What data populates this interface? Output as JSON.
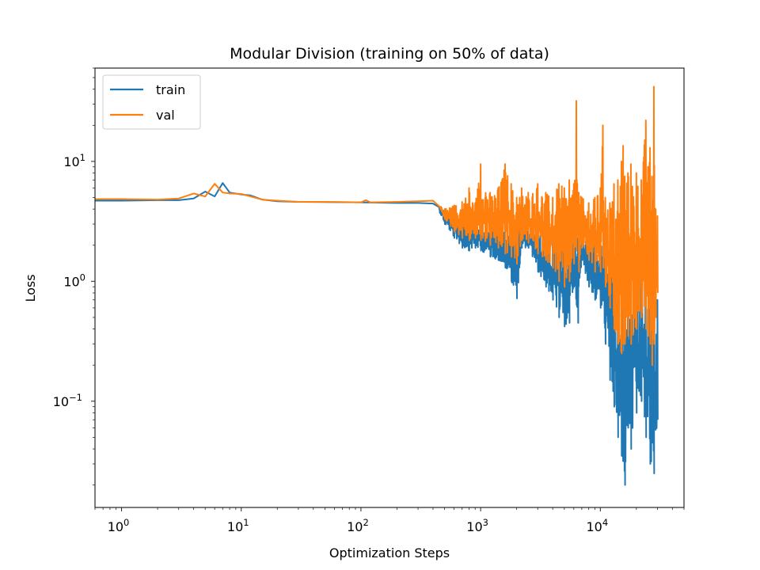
{
  "chart_data": {
    "type": "line",
    "title": "Modular Division (training on 50% of data)",
    "xlabel": "Optimization Steps",
    "ylabel": "Loss",
    "xscale": "log",
    "yscale": "log",
    "xlim": [
      0.6,
      50000
    ],
    "ylim": [
      0.013,
      60
    ],
    "grid": false,
    "legend": {
      "position": "top-left",
      "entries": [
        "train",
        "val"
      ]
    },
    "x_ticks": [
      {
        "value": 1,
        "base": "10",
        "exp": "0"
      },
      {
        "value": 10,
        "base": "10",
        "exp": "1"
      },
      {
        "value": 100,
        "base": "10",
        "exp": "2"
      },
      {
        "value": 1000,
        "base": "10",
        "exp": "3"
      },
      {
        "value": 10000,
        "base": "10",
        "exp": "4"
      }
    ],
    "y_ticks": [
      {
        "value": 0.1,
        "base": "10",
        "exp": "−1"
      },
      {
        "value": 1,
        "base": "10",
        "exp": "0"
      },
      {
        "value": 10,
        "base": "10",
        "exp": "1"
      }
    ],
    "series": [
      {
        "name": "train",
        "color": "#1f77b4",
        "points": [
          [
            0.6,
            4.7
          ],
          [
            1,
            4.7
          ],
          [
            2,
            4.75
          ],
          [
            3,
            4.75
          ],
          [
            4,
            4.9
          ],
          [
            5,
            5.6
          ],
          [
            6,
            5.1
          ],
          [
            7,
            6.6
          ],
          [
            8,
            5.5
          ],
          [
            10,
            5.3
          ],
          [
            12,
            5.2
          ],
          [
            15,
            4.8
          ],
          [
            20,
            4.65
          ],
          [
            30,
            4.6
          ],
          [
            50,
            4.58
          ],
          [
            100,
            4.55
          ],
          [
            200,
            4.5
          ],
          [
            300,
            4.5
          ],
          [
            400,
            4.45
          ]
        ],
        "noisy_envelope": [
          [
            450,
            3.8,
            4.3
          ],
          [
            500,
            3.0,
            3.9
          ],
          [
            600,
            2.3,
            3.5
          ],
          [
            700,
            1.9,
            3.3
          ],
          [
            800,
            1.8,
            3.6
          ],
          [
            900,
            1.9,
            3.2
          ],
          [
            1000,
            1.8,
            3.1
          ],
          [
            1200,
            1.6,
            2.9
          ],
          [
            1400,
            1.5,
            3.0
          ],
          [
            1600,
            1.3,
            2.8
          ],
          [
            1800,
            1.0,
            2.7
          ],
          [
            2000,
            0.72,
            2.5
          ],
          [
            2200,
            1.9,
            3.0
          ],
          [
            2500,
            1.9,
            2.8
          ],
          [
            3000,
            1.2,
            2.6
          ],
          [
            3500,
            0.9,
            2.4
          ],
          [
            4000,
            0.7,
            2.2
          ],
          [
            4500,
            0.5,
            2.3
          ],
          [
            5000,
            0.42,
            2.6
          ],
          [
            5500,
            0.45,
            2.4
          ],
          [
            6000,
            0.9,
            2.5
          ],
          [
            6500,
            0.45,
            2.3
          ],
          [
            7000,
            1.5,
            2.4
          ],
          [
            8000,
            0.9,
            2.2
          ],
          [
            9000,
            0.7,
            2.0
          ],
          [
            10000,
            0.6,
            2.2
          ],
          [
            11000,
            0.3,
            1.8
          ],
          [
            12000,
            0.15,
            1.4
          ],
          [
            13000,
            0.09,
            1.2
          ],
          [
            14000,
            0.05,
            0.9
          ],
          [
            15000,
            0.035,
            1.0
          ],
          [
            16000,
            0.02,
            0.8
          ],
          [
            17000,
            0.06,
            1.0
          ],
          [
            18000,
            0.04,
            0.9
          ],
          [
            20000,
            0.08,
            1.2
          ],
          [
            22000,
            0.1,
            1.0
          ],
          [
            24000,
            0.05,
            0.8
          ],
          [
            26000,
            0.03,
            0.9
          ],
          [
            28000,
            0.025,
            0.8
          ],
          [
            30000,
            0.07,
            0.7
          ]
        ]
      },
      {
        "name": "val",
        "color": "#ff7f0e",
        "points": [
          [
            0.6,
            4.85
          ],
          [
            1,
            4.85
          ],
          [
            2,
            4.8
          ],
          [
            3,
            4.9
          ],
          [
            4,
            5.4
          ],
          [
            5,
            5.1
          ],
          [
            6,
            6.5
          ],
          [
            7,
            5.5
          ],
          [
            8,
            5.4
          ],
          [
            10,
            5.35
          ],
          [
            12,
            5.1
          ],
          [
            15,
            4.8
          ],
          [
            20,
            4.7
          ],
          [
            30,
            4.6
          ],
          [
            50,
            4.6
          ],
          [
            100,
            4.55
          ],
          [
            110,
            4.75
          ],
          [
            120,
            4.55
          ],
          [
            200,
            4.6
          ],
          [
            300,
            4.65
          ],
          [
            400,
            4.7
          ]
        ],
        "noisy_envelope": [
          [
            450,
            4.0,
            4.5
          ],
          [
            500,
            3.3,
            4.0
          ],
          [
            600,
            2.6,
            4.3
          ],
          [
            700,
            2.3,
            4.6
          ],
          [
            800,
            2.2,
            6.0
          ],
          [
            900,
            2.3,
            4.5
          ],
          [
            1000,
            2.2,
            9.5
          ],
          [
            1200,
            2.0,
            5.5
          ],
          [
            1400,
            1.9,
            6.0
          ],
          [
            1600,
            1.7,
            9.5
          ],
          [
            1800,
            1.6,
            6.5
          ],
          [
            2000,
            1.4,
            5.0
          ],
          [
            2200,
            2.2,
            6.0
          ],
          [
            2500,
            2.1,
            5.5
          ],
          [
            3000,
            1.7,
            6.5
          ],
          [
            3500,
            1.5,
            5.5
          ],
          [
            4000,
            1.3,
            5.0
          ],
          [
            4500,
            1.0,
            6.5
          ],
          [
            5000,
            0.9,
            6.0
          ],
          [
            5500,
            1.0,
            7.0
          ],
          [
            6000,
            1.4,
            6.5
          ],
          [
            6300,
            1.8,
            32.0
          ],
          [
            6600,
            1.2,
            5.5
          ],
          [
            7000,
            1.9,
            5.0
          ],
          [
            8000,
            1.5,
            4.5
          ],
          [
            9000,
            1.2,
            5.0
          ],
          [
            10000,
            1.2,
            6.0
          ],
          [
            10500,
            1.3,
            20.0
          ],
          [
            11000,
            0.9,
            5.0
          ],
          [
            12000,
            0.6,
            4.5
          ],
          [
            13000,
            0.4,
            6.5
          ],
          [
            14000,
            0.3,
            7.0
          ],
          [
            15000,
            0.25,
            10.0
          ],
          [
            15500,
            0.3,
            13.5
          ],
          [
            16000,
            0.3,
            7.5
          ],
          [
            17000,
            0.35,
            8.0
          ],
          [
            18000,
            0.3,
            9.5
          ],
          [
            20000,
            0.4,
            8.0
          ],
          [
            22000,
            0.5,
            7.0
          ],
          [
            24000,
            0.4,
            22.0
          ],
          [
            25000,
            0.35,
            9.0
          ],
          [
            26000,
            0.3,
            13.0
          ],
          [
            27000,
            0.2,
            7.5
          ],
          [
            28000,
            0.3,
            42.0
          ],
          [
            29000,
            0.5,
            4.0
          ],
          [
            30000,
            0.8,
            3.5
          ]
        ]
      }
    ]
  }
}
